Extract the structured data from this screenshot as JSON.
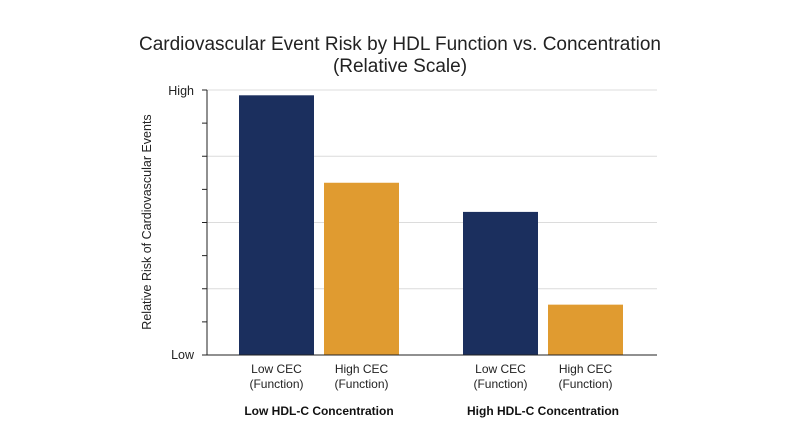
{
  "chart_data": {
    "type": "bar",
    "title": [
      "Cardiovascular Event Risk by HDL Function vs. Concentration",
      "(Relative Scale)"
    ],
    "ylabel": "Relative Risk of Cardiovascular Events",
    "y_tick_labels": {
      "low": "Low",
      "high": "High"
    },
    "ylim": [
      0,
      1
    ],
    "grid": true,
    "groups": [
      {
        "label": "Low HDL-C Concentration",
        "bars": [
          {
            "label": [
              "Low CEC",
              "(Function)"
            ],
            "value": 0.98,
            "color": "#1b2f5e"
          },
          {
            "label": [
              "High CEC",
              "(Function)"
            ],
            "value": 0.65,
            "color": "#e09b30"
          }
        ]
      },
      {
        "label": "High HDL-C Concentration",
        "bars": [
          {
            "label": [
              "Low CEC",
              "(Function)"
            ],
            "value": 0.54,
            "color": "#1b2f5e"
          },
          {
            "label": [
              "High CEC",
              "(Function)"
            ],
            "value": 0.19,
            "color": "#e09b30"
          }
        ]
      }
    ]
  }
}
